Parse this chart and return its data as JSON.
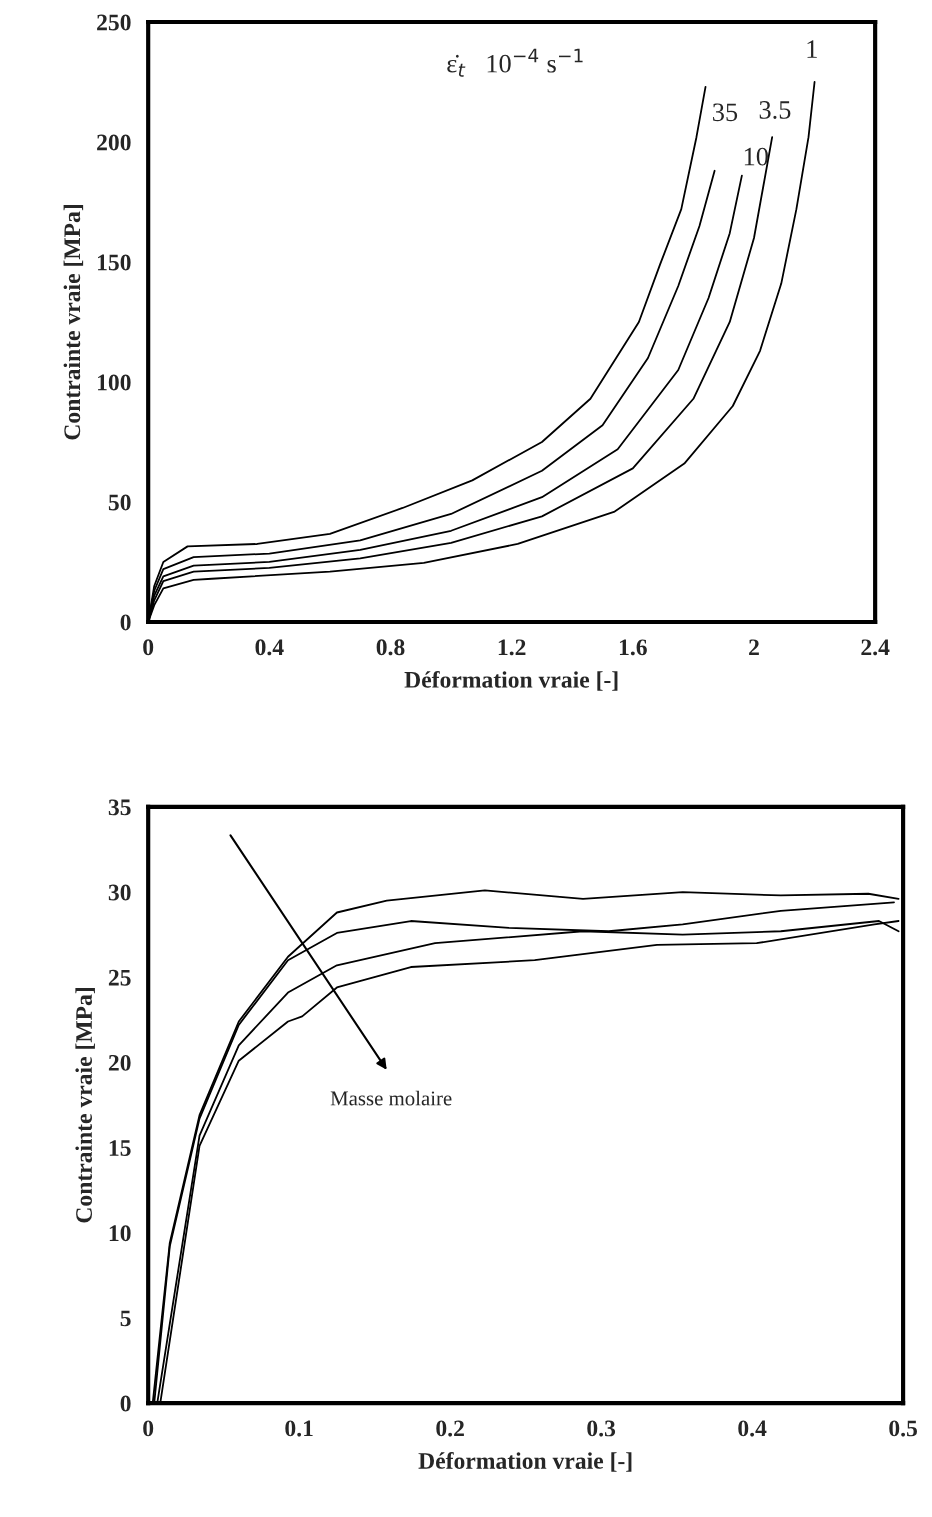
{
  "chart_data": [
    {
      "type": "line",
      "xlabel": "Déformation vraie [-]",
      "ylabel": "Contrainte vraie [MPa]",
      "xlim": [
        0,
        2.4
      ],
      "ylim": [
        0,
        250
      ],
      "xticks": [
        0,
        0.4,
        0.8,
        1.2,
        1.6,
        2,
        2.4
      ],
      "yticks": [
        0,
        50,
        100,
        150,
        200,
        250
      ],
      "grid": false,
      "legend": false,
      "marker": "none",
      "line_style": "solid",
      "annotations": [
        "ε̇$_{t}$   10$^{−4}$ s$^{−1}$"
      ],
      "series": [
        {
          "name": "35",
          "color": "#000000",
          "x": [
            0,
            0.02,
            0.05,
            0.13,
            0.36,
            0.6,
            0.84,
            1.07,
            1.3,
            1.46,
            1.62,
            1.69,
            1.76,
            1.81,
            1.84
          ],
          "values": [
            0,
            15,
            25,
            31.5,
            32.5,
            36.7,
            47.5,
            59,
            75,
            93,
            125,
            149,
            172,
            202,
            223
          ]
        },
        {
          "color": "#000000",
          "x": [
            0,
            0.02,
            0.05,
            0.15,
            0.4,
            0.7,
            1.0,
            1.3,
            1.5,
            1.65,
            1.75,
            1.82,
            1.87
          ],
          "values": [
            0,
            13,
            22,
            27,
            28.5,
            34,
            45,
            63,
            82,
            110,
            140,
            165,
            188
          ]
        },
        {
          "name": "10",
          "color": "#000000",
          "x": [
            0,
            0.02,
            0.05,
            0.15,
            0.4,
            0.7,
            1.0,
            1.3,
            1.55,
            1.75,
            1.85,
            1.92,
            1.96
          ],
          "values": [
            0,
            11,
            19,
            23.5,
            25,
            30,
            38,
            52,
            72,
            105,
            135,
            162,
            186
          ]
        },
        {
          "name": "3.5",
          "color": "#000000",
          "x": [
            0,
            0.02,
            0.05,
            0.15,
            0.4,
            0.7,
            1.0,
            1.3,
            1.6,
            1.8,
            1.92,
            2.0,
            2.06
          ],
          "values": [
            0,
            9,
            17,
            21,
            22.5,
            26.5,
            33,
            44,
            64,
            93,
            125,
            160,
            202
          ]
        },
        {
          "name": "1",
          "color": "#000000",
          "x": [
            0,
            0.02,
            0.05,
            0.15,
            0.21,
            0.6,
            0.91,
            1.22,
            1.54,
            1.77,
            1.93,
            2.02,
            2.09,
            2.14,
            2.18,
            2.2
          ],
          "values": [
            0,
            7,
            14,
            17.5,
            18,
            21,
            24.6,
            32.5,
            46,
            66,
            90,
            113,
            141,
            172,
            202,
            225
          ]
        }
      ]
    },
    {
      "type": "line",
      "xlabel": "Déformation vraie [-]",
      "ylabel": "Contrainte vraie [MPa]",
      "xlim": [
        0,
        0.5
      ],
      "ylim": [
        0,
        35
      ],
      "xticks": [
        0,
        0.1,
        0.2,
        0.3,
        0.4,
        0.5
      ],
      "yticks": [
        0,
        5,
        10,
        15,
        20,
        25,
        30,
        35
      ],
      "grid": false,
      "legend": false,
      "marker": "none",
      "line_style": "solid",
      "annotations": [
        "Masse molaire"
      ],
      "series": [
        {
          "color": "#000000",
          "x": [
            0.003,
            0.0143,
            0.034,
            0.06,
            0.0926,
            0.125,
            0.158,
            0.223,
            0.288,
            0.354,
            0.419,
            0.477,
            0.497
          ],
          "values": [
            0,
            9.4,
            16.9,
            22.4,
            26.2,
            28.8,
            29.5,
            30.1,
            29.6,
            30.0,
            29.8,
            29.9,
            29.6
          ]
        },
        {
          "color": "#000000",
          "x": [
            0.004,
            0.0143,
            0.034,
            0.06,
            0.0926,
            0.125,
            0.174,
            0.239,
            0.305,
            0.354,
            0.419,
            0.494
          ],
          "values": [
            0,
            9.2,
            16.7,
            22.2,
            26.0,
            27.6,
            28.3,
            27.9,
            27.7,
            28.1,
            28.9,
            29.4
          ]
        },
        {
          "color": "#000000",
          "x": [
            0.006,
            0.034,
            0.06,
            0.0926,
            0.125,
            0.19,
            0.288,
            0.354,
            0.419,
            0.484,
            0.497
          ],
          "values": [
            0,
            15.7,
            21,
            24.1,
            25.7,
            27.0,
            27.7,
            27.5,
            27.7,
            28.3,
            27.7
          ]
        },
        {
          "color": "#000000",
          "x": [
            0.008,
            0.034,
            0.06,
            0.0926,
            0.102,
            0.125,
            0.174,
            0.256,
            0.337,
            0.403,
            0.481,
            0.497
          ],
          "values": [
            0,
            15.1,
            20.1,
            22.4,
            22.7,
            24.4,
            25.6,
            26.0,
            26.9,
            27.0,
            28.1,
            28.3
          ]
        }
      ]
    }
  ]
}
